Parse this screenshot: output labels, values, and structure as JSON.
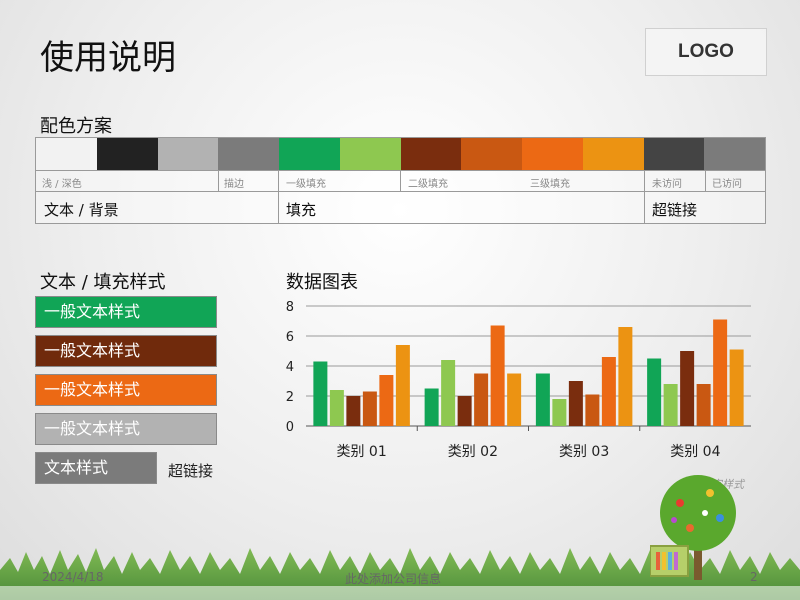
{
  "slide": {
    "title": "使用说明",
    "logo": "LOGO",
    "palette_label": "配色方案",
    "styles_label": "文本 / 填充样式",
    "chart_label": "数据图表",
    "footer": {
      "date": "2024/4/18",
      "info": "此处添加公司信息",
      "page": "2"
    },
    "faint_note": "文本文字样式"
  },
  "palette": {
    "colors": [
      "#f2f2f2",
      "#222222",
      "#b2b2b2",
      "#7b7b7b",
      "#11a556",
      "#8ec850",
      "#7a2d0e",
      "#c95812",
      "#ec6914",
      "#ec9312",
      "#444444",
      "#7b7b7b"
    ],
    "sub_labels": {
      "light_dark": "浅 / 深色",
      "stroke": "描边",
      "fill1": "一级填充",
      "fill2": "二级填充",
      "fill3": "三级填充",
      "unvisited": "未访问",
      "visited": "已访问"
    },
    "main_labels": {
      "text_bg": "文本 / 背景",
      "fill": "填充",
      "hyperlink": "超链接"
    }
  },
  "styles": {
    "items": [
      {
        "label": "一般文本样式",
        "bg": "#11a556"
      },
      {
        "label": "一般文本样式",
        "bg": "#702a0c"
      },
      {
        "label": "一般文本样式",
        "bg": "#ec6914"
      },
      {
        "label": "一般文本样式",
        "bg": "#b2b2b2"
      },
      {
        "label": "文本样式",
        "bg": "#7b7b7b"
      }
    ],
    "hyperlink": "超链接"
  },
  "chart_data": {
    "type": "bar",
    "categories": [
      "类别 01",
      "类别 02",
      "类别 03",
      "类别 04"
    ],
    "series": [
      {
        "color": "#11a556",
        "values": [
          4.3,
          2.5,
          3.5,
          4.5
        ]
      },
      {
        "color": "#8ec850",
        "values": [
          2.4,
          4.4,
          1.8,
          2.8
        ]
      },
      {
        "color": "#7a2d0e",
        "values": [
          2.0,
          2.0,
          3.0,
          5.0
        ]
      },
      {
        "color": "#c95812",
        "values": [
          2.3,
          3.5,
          2.1,
          2.8
        ]
      },
      {
        "color": "#ec6914",
        "values": [
          3.4,
          6.7,
          4.6,
          7.1
        ]
      },
      {
        "color": "#ec9312",
        "values": [
          5.4,
          3.5,
          6.6,
          5.1
        ]
      }
    ],
    "ylim": [
      0,
      8
    ],
    "yticks": [
      0,
      2,
      4,
      6,
      8
    ],
    "grid": true,
    "legend": "none"
  }
}
